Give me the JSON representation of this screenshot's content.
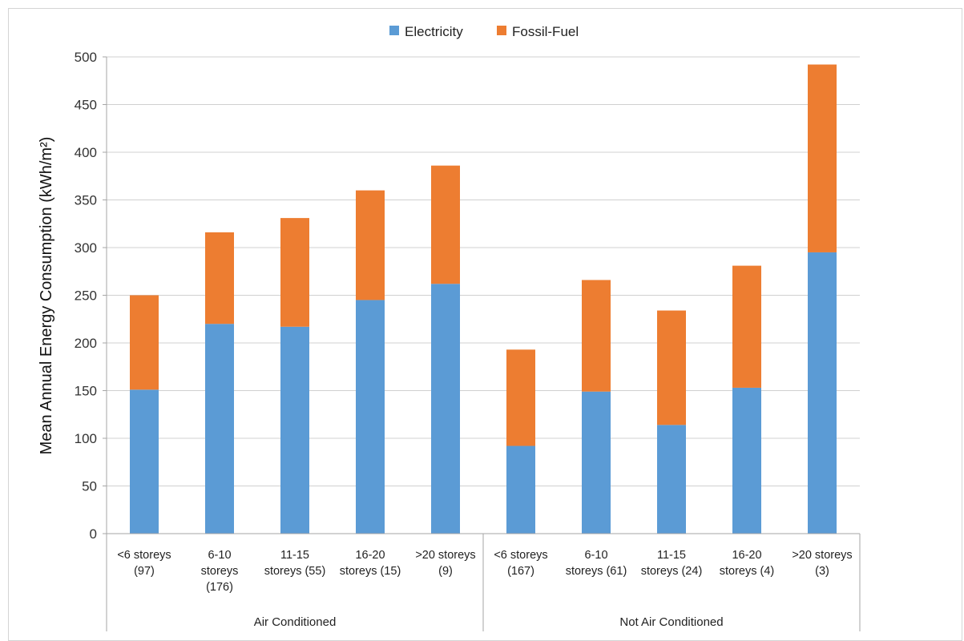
{
  "chart_data": {
    "type": "bar",
    "stacked": true,
    "ylabel": "Mean Annual Energy Consumption (kWh/m²)",
    "ylim": [
      0,
      500
    ],
    "yticks": [
      0,
      50,
      100,
      150,
      200,
      250,
      300,
      350,
      400,
      450,
      500
    ],
    "grid": true,
    "legend_position": "top-center",
    "groups": [
      {
        "label": "Air Conditioned",
        "categories": [
          [
            "<6 storeys",
            "(97)"
          ],
          [
            "6-10",
            "storeys",
            "(176)"
          ],
          [
            "11-15",
            "storeys (55)"
          ],
          [
            "16-20",
            "storeys (15)"
          ],
          [
            ">20 storeys",
            "(9)"
          ]
        ]
      },
      {
        "label": "Not Air Conditioned",
        "categories": [
          [
            "<6 storeys",
            "(167)"
          ],
          [
            "6-10",
            "storeys (61)"
          ],
          [
            "11-15",
            "storeys (24)"
          ],
          [
            "16-20",
            "storeys (4)"
          ],
          [
            ">20 storeys",
            "(3)"
          ]
        ]
      }
    ],
    "series": [
      {
        "name": "Electricity",
        "color": "#5B9BD5",
        "values": [
          151,
          220,
          217,
          245,
          262,
          92,
          149,
          114,
          153,
          295
        ]
      },
      {
        "name": "Fossil-Fuel",
        "color": "#ED7D31",
        "values": [
          99,
          96,
          114,
          115,
          124,
          101,
          117,
          120,
          128,
          197
        ]
      }
    ]
  }
}
